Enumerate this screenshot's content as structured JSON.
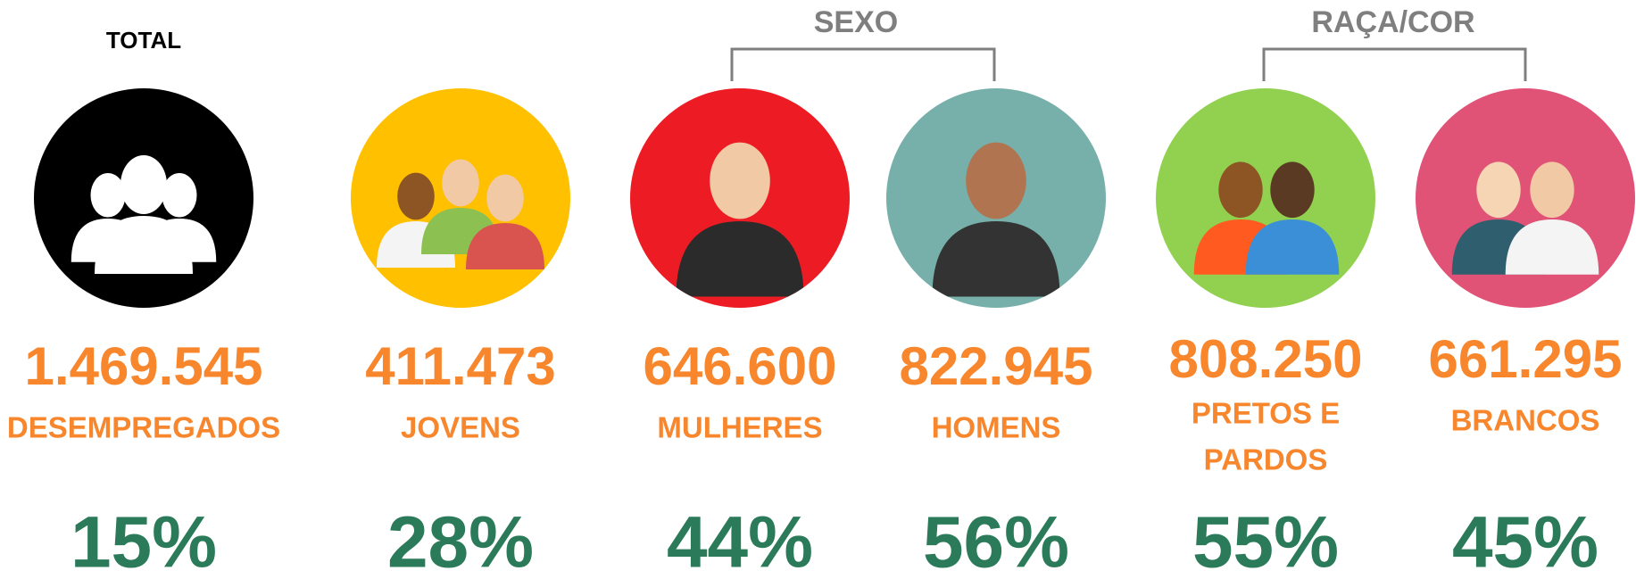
{
  "headers": {
    "total": "TOTAL",
    "sexo": "SEXO",
    "raca": "RAÇA/COR"
  },
  "items": [
    {
      "number": "1.469.545",
      "label_lines": [
        "DESEMPREGADOS"
      ],
      "percent": "15%"
    },
    {
      "number": "411.473",
      "label_lines": [
        "JOVENS"
      ],
      "percent": "28%"
    },
    {
      "number": "646.600",
      "label_lines": [
        "MULHERES"
      ],
      "percent": "44%"
    },
    {
      "number": "822.945",
      "label_lines": [
        "HOMENS"
      ],
      "percent": "56%"
    },
    {
      "number": "808.250",
      "label_lines": [
        "PRETOS E",
        "PARDOS"
      ],
      "percent": "55%"
    },
    {
      "number": "661.295",
      "label_lines": [
        "BRANCOS"
      ],
      "percent": "45%"
    }
  ]
}
